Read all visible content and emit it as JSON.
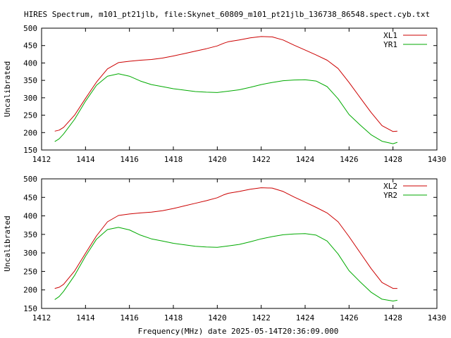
{
  "title": "HIRES Spectrum, m101_pt21jlb, file:Skynet_60809_m101_pt21jlb_136738_86548.spect.cyb.txt",
  "xlabel": "Frequency(MHz) date 2025-05-14T20:36:09.000",
  "colors": {
    "red": "#cc0000",
    "green": "#00aa00",
    "axis": "#000000"
  },
  "chart_data": [
    {
      "type": "line",
      "title": "",
      "ylabel": "Uncalibrated",
      "xlim": [
        1412,
        1430
      ],
      "ylim": [
        150,
        500
      ],
      "xticks": [
        1412,
        1414,
        1416,
        1418,
        1420,
        1422,
        1424,
        1426,
        1428,
        1430
      ],
      "yticks": [
        150,
        200,
        250,
        300,
        350,
        400,
        450,
        500
      ],
      "grid": false,
      "legend_position": "top-right",
      "series": [
        {
          "name": "XL1",
          "color": "#cc0000",
          "x": [
            1412.6,
            1412.8,
            1413.0,
            1413.5,
            1414.0,
            1414.5,
            1415.0,
            1415.5,
            1416.0,
            1416.5,
            1417.0,
            1417.5,
            1418.0,
            1418.5,
            1419.0,
            1419.5,
            1420.0,
            1420.3,
            1420.5,
            1421.0,
            1421.5,
            1422.0,
            1422.5,
            1423.0,
            1423.5,
            1424.0,
            1424.5,
            1425.0,
            1425.5,
            1426.0,
            1426.5,
            1427.0,
            1427.5,
            1428.0,
            1428.2
          ],
          "y": [
            204,
            207,
            215,
            250,
            298,
            345,
            383,
            401,
            405,
            408,
            410,
            414,
            420,
            427,
            434,
            441,
            449,
            457,
            461,
            466,
            472,
            476,
            475,
            466,
            451,
            437,
            423,
            408,
            384,
            344,
            301,
            258,
            220,
            203,
            204
          ]
        },
        {
          "name": "YR1",
          "color": "#00aa00",
          "x": [
            1412.6,
            1412.8,
            1413.0,
            1413.5,
            1414.0,
            1414.5,
            1415.0,
            1415.5,
            1416.0,
            1416.5,
            1417.0,
            1417.5,
            1418.0,
            1418.5,
            1419.0,
            1419.5,
            1420.0,
            1420.5,
            1421.0,
            1421.5,
            1422.0,
            1422.5,
            1423.0,
            1423.5,
            1424.0,
            1424.5,
            1425.0,
            1425.5,
            1426.0,
            1426.5,
            1427.0,
            1427.5,
            1428.0,
            1428.2
          ],
          "y": [
            174,
            182,
            196,
            238,
            290,
            336,
            362,
            369,
            362,
            348,
            338,
            332,
            326,
            322,
            318,
            316,
            315,
            319,
            323,
            330,
            338,
            344,
            349,
            351,
            352,
            348,
            332,
            297,
            252,
            222,
            194,
            175,
            168,
            172
          ]
        }
      ]
    },
    {
      "type": "line",
      "title": "",
      "ylabel": "Uncalibrated",
      "xlim": [
        1412,
        1430
      ],
      "ylim": [
        150,
        500
      ],
      "xticks": [
        1412,
        1414,
        1416,
        1418,
        1420,
        1422,
        1424,
        1426,
        1428,
        1430
      ],
      "yticks": [
        150,
        200,
        250,
        300,
        350,
        400,
        450,
        500
      ],
      "grid": false,
      "legend_position": "top-right",
      "series": [
        {
          "name": "XL2",
          "color": "#cc0000",
          "x": [
            1412.6,
            1412.8,
            1413.0,
            1413.5,
            1414.0,
            1414.5,
            1415.0,
            1415.5,
            1416.0,
            1416.5,
            1417.0,
            1417.5,
            1418.0,
            1418.5,
            1419.0,
            1419.5,
            1420.0,
            1420.3,
            1420.5,
            1421.0,
            1421.5,
            1422.0,
            1422.5,
            1423.0,
            1423.5,
            1424.0,
            1424.5,
            1425.0,
            1425.5,
            1426.0,
            1426.5,
            1427.0,
            1427.5,
            1428.0,
            1428.2
          ],
          "y": [
            204,
            207,
            215,
            251,
            299,
            346,
            384,
            401,
            405,
            408,
            410,
            414,
            420,
            427,
            434,
            441,
            449,
            457,
            461,
            466,
            472,
            476,
            475,
            466,
            451,
            437,
            423,
            408,
            384,
            344,
            301,
            258,
            220,
            204,
            204
          ]
        },
        {
          "name": "YR2",
          "color": "#00aa00",
          "x": [
            1412.6,
            1412.8,
            1413.0,
            1413.5,
            1414.0,
            1414.5,
            1415.0,
            1415.5,
            1416.0,
            1416.5,
            1417.0,
            1417.5,
            1418.0,
            1418.5,
            1419.0,
            1419.5,
            1420.0,
            1420.5,
            1421.0,
            1421.5,
            1422.0,
            1422.5,
            1423.0,
            1423.5,
            1424.0,
            1424.5,
            1425.0,
            1425.5,
            1426.0,
            1426.5,
            1427.0,
            1427.5,
            1428.0,
            1428.2
          ],
          "y": [
            174,
            182,
            196,
            239,
            291,
            337,
            363,
            369,
            362,
            348,
            338,
            332,
            326,
            322,
            318,
            316,
            315,
            319,
            323,
            330,
            338,
            344,
            349,
            351,
            352,
            348,
            332,
            297,
            252,
            222,
            194,
            175,
            170,
            172
          ]
        }
      ]
    }
  ]
}
